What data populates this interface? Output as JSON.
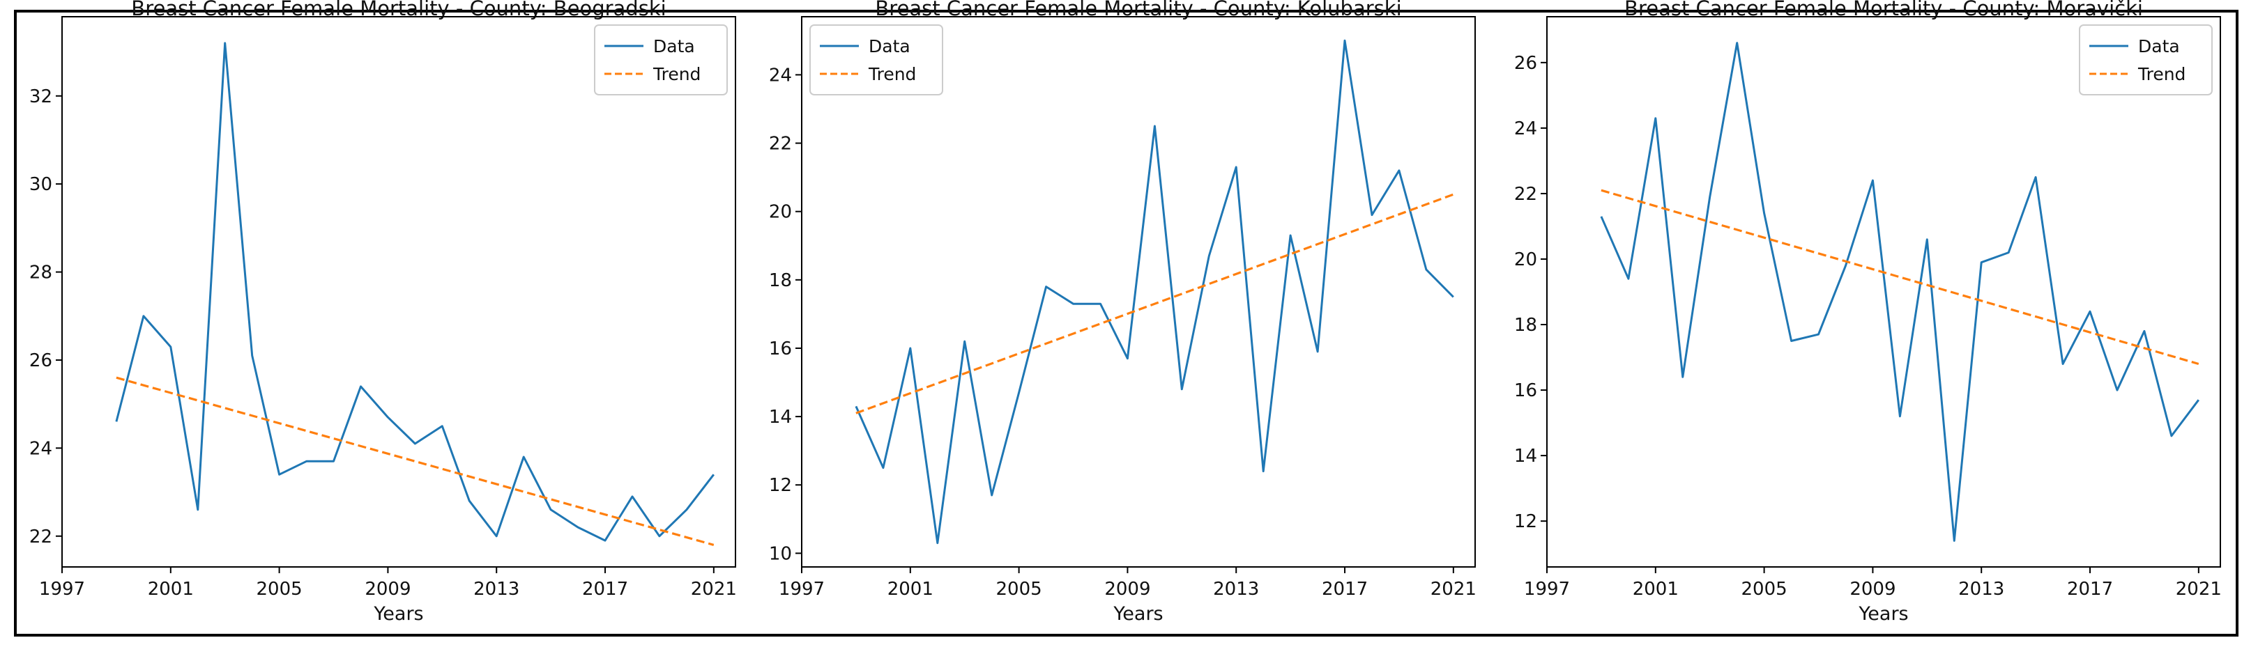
{
  "colors": {
    "data": "#1f77b4",
    "trend": "#ff7f0e",
    "axis": "#000000",
    "text": "#111111"
  },
  "chart_data": [
    {
      "type": "line",
      "title": "Breast Cancer Female Mortality - County: Beogradski",
      "xlabel": "Years",
      "ylabel": "",
      "xlim": [
        1997,
        2021.8
      ],
      "ylim": [
        21.3,
        33.8
      ],
      "xticks": [
        1997,
        2001,
        2005,
        2009,
        2013,
        2017,
        2021
      ],
      "yticks": [
        22,
        24,
        26,
        28,
        30,
        32
      ],
      "legend": {
        "position": "top-right",
        "entries": [
          "Data",
          "Trend"
        ]
      },
      "series": [
        {
          "name": "Data",
          "style": "solid",
          "x": [
            1999,
            2000,
            2001,
            2002,
            2003,
            2004,
            2005,
            2006,
            2007,
            2008,
            2009,
            2010,
            2011,
            2012,
            2013,
            2014,
            2015,
            2016,
            2017,
            2018,
            2019,
            2020,
            2021
          ],
          "y": [
            24.6,
            27.0,
            26.3,
            22.6,
            33.2,
            26.1,
            23.4,
            23.7,
            23.7,
            25.4,
            24.7,
            24.1,
            24.5,
            22.8,
            22.0,
            23.8,
            22.6,
            22.2,
            21.9,
            22.9,
            22.0,
            22.6,
            23.4
          ]
        },
        {
          "name": "Trend",
          "style": "dashed",
          "x": [
            1999,
            2021
          ],
          "y": [
            25.6,
            21.8
          ]
        }
      ]
    },
    {
      "type": "line",
      "title": "Breast Cancer Female Mortality - County: Kolubarski",
      "xlabel": "Years",
      "ylabel": "",
      "xlim": [
        1997,
        2021.8
      ],
      "ylim": [
        9.6,
        25.7
      ],
      "xticks": [
        1997,
        2001,
        2005,
        2009,
        2013,
        2017,
        2021
      ],
      "yticks": [
        10,
        12,
        14,
        16,
        18,
        20,
        22,
        24
      ],
      "legend": {
        "position": "top-left",
        "entries": [
          "Data",
          "Trend"
        ]
      },
      "series": [
        {
          "name": "Data",
          "style": "solid",
          "x": [
            1999,
            2000,
            2001,
            2002,
            2003,
            2004,
            2005,
            2006,
            2007,
            2008,
            2009,
            2010,
            2011,
            2012,
            2013,
            2014,
            2015,
            2016,
            2017,
            2018,
            2019,
            2020,
            2021
          ],
          "y": [
            14.3,
            12.5,
            16.0,
            10.3,
            16.2,
            11.7,
            14.7,
            17.8,
            17.3,
            17.3,
            15.7,
            22.5,
            14.8,
            18.7,
            21.3,
            12.4,
            19.3,
            15.9,
            25.0,
            19.9,
            21.2,
            18.3,
            17.5
          ]
        },
        {
          "name": "Trend",
          "style": "dashed",
          "x": [
            1999,
            2021
          ],
          "y": [
            14.1,
            20.5
          ]
        }
      ]
    },
    {
      "type": "line",
      "title": "Breast Cancer Female Mortality - County: Moravički",
      "xlabel": "Years",
      "ylabel": "",
      "xlim": [
        1997,
        2021.8
      ],
      "ylim": [
        10.6,
        27.4
      ],
      "xticks": [
        1997,
        2001,
        2005,
        2009,
        2013,
        2017,
        2021
      ],
      "yticks": [
        12,
        14,
        16,
        18,
        20,
        22,
        24,
        26
      ],
      "legend": {
        "position": "top-right",
        "entries": [
          "Data",
          "Trend"
        ]
      },
      "series": [
        {
          "name": "Data",
          "style": "solid",
          "x": [
            1999,
            2000,
            2001,
            2002,
            2003,
            2004,
            2005,
            2006,
            2007,
            2008,
            2009,
            2010,
            2011,
            2012,
            2013,
            2014,
            2015,
            2016,
            2017,
            2018,
            2019,
            2020,
            2021
          ],
          "y": [
            21.3,
            19.4,
            24.3,
            16.4,
            21.9,
            26.6,
            21.4,
            17.5,
            17.7,
            19.8,
            22.4,
            15.2,
            20.6,
            11.4,
            19.9,
            20.2,
            22.5,
            16.8,
            18.4,
            16.0,
            17.8,
            14.6,
            15.7
          ]
        },
        {
          "name": "Trend",
          "style": "dashed",
          "x": [
            1999,
            2021
          ],
          "y": [
            22.1,
            16.8
          ]
        }
      ]
    }
  ]
}
